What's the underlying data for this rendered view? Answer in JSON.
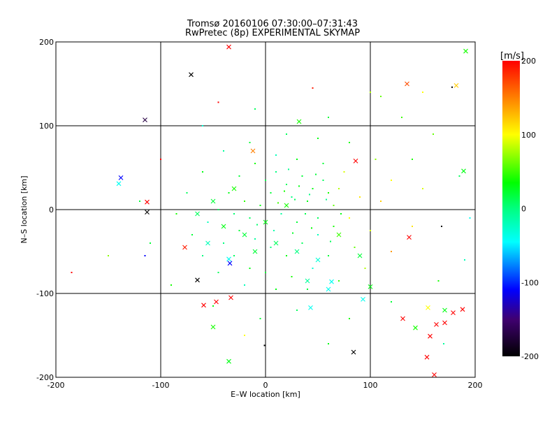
{
  "chart_data": {
    "type": "scatter",
    "title": "Tromsø 20160106 07:30:00–07:31:43",
    "subtitle": "RwPretec (8p) EXPERIMENTAL SKYMAP",
    "xlabel": "E–W location [km]",
    "ylabel": "N–S location [km]",
    "xlim": [
      -200,
      200
    ],
    "ylim": [
      -200,
      200
    ],
    "xticks": [
      -200,
      -100,
      0,
      100,
      200
    ],
    "yticks": [
      -200,
      -100,
      0,
      100,
      200
    ],
    "grid": true,
    "colorbar": {
      "label": "[m/s]",
      "range": [
        -200,
        200
      ],
      "ticks": [
        200,
        100,
        0,
        -100,
        -200
      ],
      "stops": [
        {
          "v": 200,
          "color": "#ff0000"
        },
        {
          "v": 150,
          "color": "#ff8000"
        },
        {
          "v": 100,
          "color": "#ffff00"
        },
        {
          "v": 35,
          "color": "#00ff00"
        },
        {
          "v": 0,
          "color": "#00ff80"
        },
        {
          "v": -45,
          "color": "#00ffff"
        },
        {
          "v": -110,
          "color": "#0000ff"
        },
        {
          "v": -150,
          "color": "#400070"
        },
        {
          "v": -200,
          "color": "#000000"
        }
      ]
    },
    "points_columns": [
      "x_km",
      "y_km",
      "velocity_ms"
    ],
    "dots": [
      [
        20,
        30,
        10
      ],
      [
        35,
        40,
        20
      ],
      [
        45,
        25,
        30
      ],
      [
        55,
        35,
        10
      ],
      [
        25,
        15,
        0
      ],
      [
        40,
        10,
        30
      ],
      [
        60,
        20,
        40
      ],
      [
        15,
        -5,
        -10
      ],
      [
        30,
        -15,
        20
      ],
      [
        50,
        -10,
        10
      ],
      [
        65,
        5,
        60
      ],
      [
        70,
        25,
        80
      ],
      [
        10,
        45,
        0
      ],
      [
        5,
        20,
        20
      ],
      [
        -5,
        5,
        30
      ],
      [
        -15,
        -10,
        10
      ],
      [
        -25,
        -25,
        20
      ],
      [
        -10,
        -35,
        -10
      ],
      [
        5,
        -45,
        0
      ],
      [
        20,
        -55,
        30
      ],
      [
        35,
        -40,
        10
      ],
      [
        50,
        -30,
        -20
      ],
      [
        65,
        -20,
        40
      ],
      [
        80,
        -10,
        100
      ],
      [
        90,
        15,
        110
      ],
      [
        75,
        45,
        90
      ],
      [
        55,
        55,
        20
      ],
      [
        30,
        60,
        30
      ],
      [
        10,
        65,
        -20
      ],
      [
        -10,
        55,
        40
      ],
      [
        -25,
        40,
        20
      ],
      [
        -35,
        20,
        30
      ],
      [
        -45,
        0,
        10
      ],
      [
        -55,
        -15,
        -20
      ],
      [
        -40,
        -40,
        0
      ],
      [
        -30,
        -55,
        10
      ],
      [
        -15,
        -70,
        30
      ],
      [
        0,
        -75,
        20
      ],
      [
        25,
        -80,
        40
      ],
      [
        45,
        -70,
        -30
      ],
      [
        60,
        -55,
        20
      ],
      [
        85,
        -45,
        60
      ],
      [
        100,
        -25,
        90
      ],
      [
        110,
        10,
        120
      ],
      [
        120,
        35,
        100
      ],
      [
        105,
        60,
        70
      ],
      [
        80,
        80,
        40
      ],
      [
        50,
        85,
        30
      ],
      [
        20,
        90,
        10
      ],
      [
        -15,
        80,
        20
      ],
      [
        -40,
        70,
        -10
      ],
      [
        -60,
        45,
        30
      ],
      [
        -75,
        20,
        10
      ],
      [
        -85,
        -5,
        40
      ],
      [
        -70,
        -30,
        20
      ],
      [
        -60,
        -55,
        0
      ],
      [
        -45,
        -75,
        10
      ],
      [
        -20,
        -90,
        -20
      ],
      [
        10,
        -95,
        30
      ],
      [
        40,
        -95,
        20
      ],
      [
        70,
        -85,
        50
      ],
      [
        95,
        -70,
        80
      ],
      [
        120,
        -50,
        140
      ],
      [
        140,
        -20,
        110
      ],
      [
        150,
        25,
        90
      ],
      [
        140,
        60,
        40
      ],
      [
        160,
        90,
        60
      ],
      [
        130,
        110,
        50
      ],
      [
        100,
        140,
        80
      ],
      [
        60,
        110,
        20
      ],
      [
        -10,
        120,
        10
      ],
      [
        -60,
        100,
        -30
      ],
      [
        -100,
        60,
        200
      ],
      [
        -120,
        10,
        20
      ],
      [
        -110,
        -40,
        20
      ],
      [
        -150,
        -55,
        70
      ],
      [
        -185,
        -75,
        200
      ],
      [
        -90,
        -90,
        40
      ],
      [
        -50,
        -115,
        30
      ],
      [
        -5,
        -130,
        20
      ],
      [
        30,
        -120,
        10
      ],
      [
        80,
        -130,
        40
      ],
      [
        120,
        -110,
        20
      ],
      [
        165,
        -85,
        40
      ],
      [
        190,
        -60,
        -20
      ],
      [
        195,
        -10,
        -40
      ],
      [
        185,
        40,
        10
      ],
      [
        170,
        -160,
        -10
      ],
      [
        60,
        -160,
        30
      ],
      [
        -20,
        -150,
        100
      ],
      [
        28,
        12,
        10
      ],
      [
        32,
        28,
        30
      ],
      [
        42,
        18,
        0
      ],
      [
        18,
        22,
        40
      ],
      [
        48,
        42,
        20
      ],
      [
        38,
        -5,
        15
      ],
      [
        12,
        8,
        50
      ],
      [
        58,
        12,
        -5
      ],
      [
        26,
        -28,
        25
      ],
      [
        44,
        -22,
        35
      ],
      [
        -8,
        -18,
        5
      ],
      [
        8,
        -25,
        -15
      ],
      [
        -20,
        10,
        45
      ],
      [
        62,
        -38,
        10
      ],
      [
        22,
        48,
        -5
      ],
      [
        0,
        35,
        15
      ],
      [
        -30,
        -5,
        5
      ],
      [
        72,
        -5,
        30
      ],
      [
        -1,
        -162,
        -200
      ],
      [
        -115,
        -55,
        -110
      ],
      [
        45,
        145,
        190
      ],
      [
        -45,
        128,
        200
      ],
      [
        178,
        146,
        -200
      ],
      [
        168,
        -20,
        -200
      ],
      [
        150,
        140,
        100
      ],
      [
        110,
        135,
        60
      ]
    ],
    "crosses": [
      [
        -35,
        194,
        200
      ],
      [
        -71,
        161,
        -200
      ],
      [
        -115,
        107,
        -170
      ],
      [
        -138,
        38,
        -110
      ],
      [
        -140,
        31,
        -40
      ],
      [
        -113,
        9,
        200
      ],
      [
        -113,
        -3,
        -200
      ],
      [
        -77,
        -45,
        190
      ],
      [
        -65,
        -84,
        -200
      ],
      [
        -59,
        -114,
        200
      ],
      [
        -47,
        -110,
        200
      ],
      [
        -33,
        -105,
        200
      ],
      [
        -34,
        -64,
        -110
      ],
      [
        -35,
        -59,
        -40
      ],
      [
        -35,
        -181,
        30
      ],
      [
        84,
        -170,
        -200
      ],
      [
        135,
        150,
        170
      ],
      [
        191,
        189,
        40
      ],
      [
        182,
        148,
        120
      ],
      [
        86,
        58,
        200
      ],
      [
        189,
        46,
        30
      ],
      [
        137,
        -33,
        200
      ],
      [
        131,
        -130,
        200
      ],
      [
        143,
        -141,
        40
      ],
      [
        163,
        -137,
        200
      ],
      [
        171,
        -135,
        200
      ],
      [
        188,
        -119,
        200
      ],
      [
        179,
        -123,
        200
      ],
      [
        157,
        -151,
        200
      ],
      [
        161,
        -197,
        200
      ],
      [
        154,
        -176,
        200
      ],
      [
        155,
        -117,
        100
      ],
      [
        171,
        -120,
        30
      ],
      [
        100,
        -92,
        30
      ],
      [
        93,
        -107,
        -40
      ],
      [
        63,
        -86,
        -40
      ],
      [
        43,
        -117,
        -40
      ],
      [
        -40,
        -20,
        30
      ],
      [
        -20,
        -30,
        20
      ],
      [
        10,
        -40,
        10
      ],
      [
        30,
        -50,
        0
      ],
      [
        50,
        -60,
        -30
      ],
      [
        -50,
        10,
        20
      ],
      [
        -30,
        25,
        40
      ],
      [
        70,
        -30,
        50
      ],
      [
        90,
        -55,
        20
      ],
      [
        -55,
        -40,
        -20
      ],
      [
        0,
        -15,
        30
      ],
      [
        20,
        5,
        40
      ],
      [
        -65,
        -5,
        10
      ],
      [
        40,
        -85,
        -10
      ],
      [
        60,
        -95,
        -40
      ],
      [
        -10,
        -50,
        20
      ],
      [
        -12,
        70,
        150
      ],
      [
        32,
        105,
        40
      ],
      [
        -50,
        -140,
        40
      ]
    ]
  }
}
